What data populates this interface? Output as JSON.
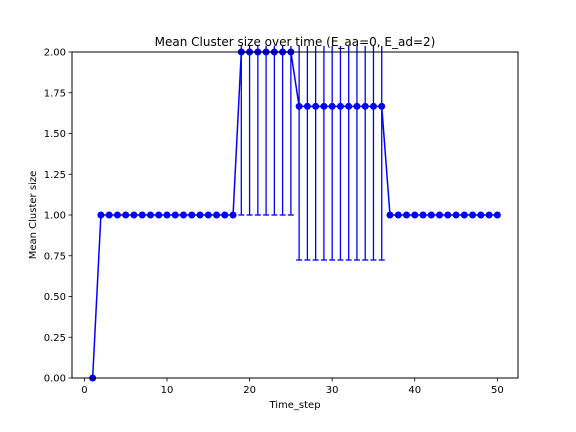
{
  "chart_data": {
    "type": "line",
    "title": "Mean Cluster size over time (E_aa=0, E_ad=2)",
    "xlabel": "Time_step",
    "ylabel": "Mean Cluster size",
    "xlim": [
      -1.5,
      52.5
    ],
    "ylim": [
      0.0,
      2.0
    ],
    "xticks": [
      0,
      10,
      20,
      30,
      40,
      50
    ],
    "xtick_labels": [
      "0",
      "10",
      "20",
      "30",
      "40",
      "50"
    ],
    "yticks": [
      0.0,
      0.25,
      0.5,
      0.75,
      1.0,
      1.25,
      1.5,
      1.75,
      2.0
    ],
    "ytick_labels": [
      "0.00",
      "0.25",
      "0.50",
      "0.75",
      "1.00",
      "1.25",
      "1.50",
      "1.75",
      "2.00"
    ],
    "grid": false,
    "color": "#0000ff",
    "marker": "circle",
    "x": [
      1,
      2,
      3,
      4,
      5,
      6,
      7,
      8,
      9,
      10,
      11,
      12,
      13,
      14,
      15,
      16,
      17,
      18,
      19,
      20,
      21,
      22,
      23,
      24,
      25,
      26,
      27,
      28,
      29,
      30,
      31,
      32,
      33,
      34,
      35,
      36,
      37,
      38,
      39,
      40,
      41,
      42,
      43,
      44,
      45,
      46,
      47,
      48,
      49,
      50
    ],
    "y": [
      0,
      1,
      1,
      1,
      1,
      1,
      1,
      1,
      1,
      1,
      1,
      1,
      1,
      1,
      1,
      1,
      1,
      1,
      2,
      2,
      2,
      2,
      2,
      2,
      2,
      1.6667,
      1.6667,
      1.6667,
      1.6667,
      1.6667,
      1.6667,
      1.6667,
      1.6667,
      1.6667,
      1.6667,
      1.6667,
      1,
      1,
      1,
      1,
      1,
      1,
      1,
      1,
      1,
      1,
      1,
      1,
      1,
      1
    ],
    "error": [
      0,
      0,
      0,
      0,
      0,
      0,
      0,
      0,
      0,
      0,
      0,
      0,
      0,
      0,
      0,
      0,
      0,
      0,
      1,
      1,
      1,
      1,
      1,
      1,
      1,
      0.9428,
      0.9428,
      0.9428,
      0.9428,
      0.9428,
      0.9428,
      0.9428,
      0.9428,
      0.9428,
      0.9428,
      0.9428,
      0,
      0,
      0,
      0,
      0,
      0,
      0,
      0,
      0,
      0,
      0,
      0,
      0,
      0
    ]
  }
}
